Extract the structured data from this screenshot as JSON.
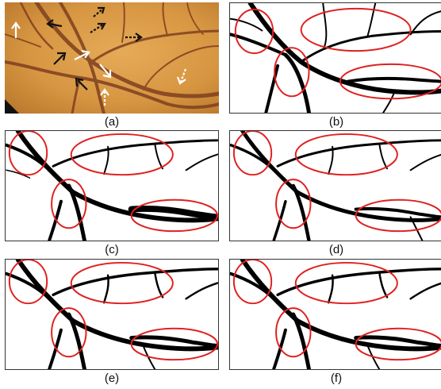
{
  "figure": {
    "panels": [
      {
        "id": "a",
        "caption": "(a)",
        "kind": "fundus-photo"
      },
      {
        "id": "b",
        "caption": "(b)",
        "kind": "segmentation"
      },
      {
        "id": "c",
        "caption": "(c)",
        "kind": "segmentation"
      },
      {
        "id": "d",
        "caption": "(d)",
        "kind": "segmentation"
      },
      {
        "id": "e",
        "caption": "(e)",
        "kind": "segmentation"
      },
      {
        "id": "f",
        "caption": "(f)",
        "kind": "segmentation"
      }
    ],
    "colors": {
      "fundus_light": "#e0a24e",
      "fundus_mid": "#c58637",
      "fundus_dark": "#9a5f22",
      "vessel_photo": "#7a3d1e",
      "vessel_mask": "#000000",
      "highlight_ellipse": "#e02020",
      "arrow_black": "#111111",
      "arrow_white": "#ffffff"
    }
  }
}
